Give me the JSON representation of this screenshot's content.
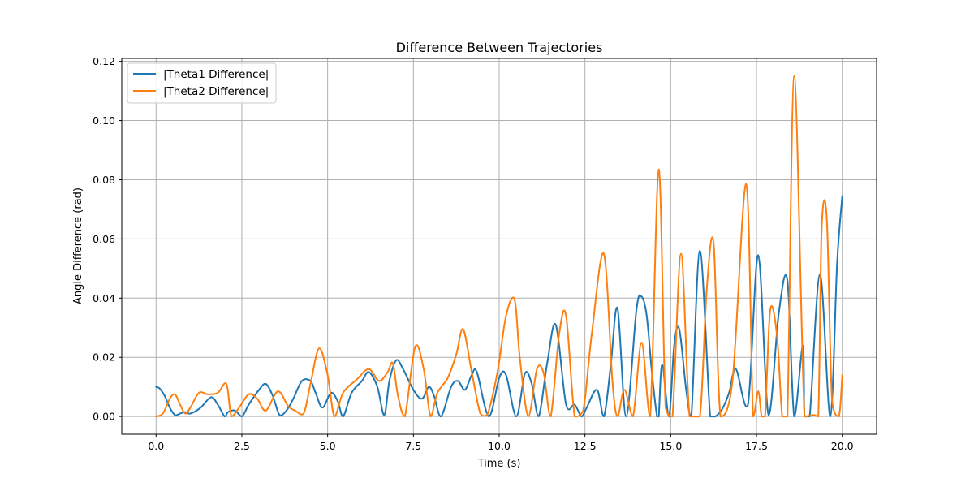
{
  "chart_data": {
    "type": "line",
    "title": "Difference Between Trajectories",
    "xlabel": "Time (s)",
    "ylabel": "Angle Difference (rad)",
    "xlim": [
      -1.0,
      21.0
    ],
    "ylim": [
      -0.006,
      0.121
    ],
    "xticks": [
      0.0,
      2.5,
      5.0,
      7.5,
      10.0,
      12.5,
      15.0,
      17.5,
      20.0
    ],
    "xtick_labels": [
      "0.0",
      "2.5",
      "5.0",
      "7.5",
      "10.0",
      "12.5",
      "15.0",
      "17.5",
      "20.0"
    ],
    "yticks": [
      0.0,
      0.02,
      0.04,
      0.06,
      0.08,
      0.1,
      0.12
    ],
    "ytick_labels": [
      "0.00",
      "0.02",
      "0.04",
      "0.06",
      "0.08",
      "0.10",
      "0.12"
    ],
    "grid": true,
    "legend_position": "top-left",
    "series": [
      {
        "name": "|Theta1 Difference|",
        "color": "#1f77b4",
        "x": [
          0.0,
          0.1,
          0.25,
          0.4,
          0.55,
          0.7,
          0.85,
          1.0,
          1.3,
          1.6,
          1.8,
          2.0,
          2.1,
          2.3,
          2.5,
          2.7,
          3.0,
          3.2,
          3.4,
          3.6,
          3.8,
          4.0,
          4.25,
          4.5,
          4.65,
          4.85,
          5.1,
          5.3,
          5.45,
          5.7,
          6.0,
          6.2,
          6.45,
          6.65,
          6.8,
          7.0,
          7.2,
          7.5,
          7.75,
          7.95,
          8.1,
          8.3,
          8.6,
          8.8,
          9.0,
          9.2,
          9.35,
          9.7,
          10.0,
          10.2,
          10.5,
          10.75,
          10.95,
          11.15,
          11.4,
          11.65,
          11.95,
          12.2,
          12.4,
          12.55,
          12.85,
          13.05,
          13.25,
          13.45,
          13.7,
          14.0,
          14.15,
          14.3,
          14.45,
          14.6,
          14.65,
          14.75,
          14.95,
          15.1,
          15.25,
          15.45,
          15.6,
          15.85,
          16.15,
          16.3,
          16.5,
          16.7,
          16.9,
          17.25,
          17.55,
          17.85,
          18.15,
          18.4,
          18.6,
          18.85,
          18.9,
          19.05,
          19.35,
          19.65,
          19.85,
          20.0
        ],
        "y": [
          0.01,
          0.0095,
          0.007,
          0.003,
          0.0005,
          0.001,
          0.0015,
          0.001,
          0.003,
          0.0065,
          0.004,
          0.0,
          0.0015,
          0.002,
          0.0,
          0.004,
          0.009,
          0.011,
          0.007,
          0.0005,
          0.002,
          0.006,
          0.012,
          0.012,
          0.008,
          0.003,
          0.008,
          0.005,
          0.0,
          0.008,
          0.012,
          0.015,
          0.01,
          0.0005,
          0.012,
          0.019,
          0.016,
          0.009,
          0.006,
          0.01,
          0.007,
          0.0,
          0.01,
          0.012,
          0.009,
          0.014,
          0.015,
          0.0,
          0.013,
          0.014,
          0.0,
          0.0145,
          0.011,
          0.0,
          0.018,
          0.031,
          0.004,
          0.004,
          0.0,
          0.003,
          0.009,
          0.0,
          0.017,
          0.0365,
          0.0,
          0.036,
          0.0405,
          0.034,
          0.015,
          0.0,
          0.0,
          0.0175,
          0.0,
          0.024,
          0.0295,
          0.009,
          0.0,
          0.056,
          0.0,
          0.0,
          0.0025,
          0.008,
          0.016,
          0.004,
          0.0545,
          0.0005,
          0.035,
          0.046,
          0.0,
          0.024,
          0.0,
          0.0,
          0.048,
          0.0,
          0.052,
          0.0745
        ]
      },
      {
        "name": "|Theta2 Difference|",
        "color": "#ff7f0e",
        "x": [
          0.0,
          0.2,
          0.4,
          0.55,
          0.7,
          0.85,
          1.0,
          1.25,
          1.5,
          1.8,
          2.05,
          2.2,
          2.45,
          2.7,
          2.95,
          3.2,
          3.55,
          3.85,
          4.05,
          4.3,
          4.5,
          4.75,
          5.0,
          5.2,
          5.45,
          5.85,
          6.2,
          6.5,
          6.75,
          6.9,
          7.05,
          7.25,
          7.55,
          7.8,
          8.0,
          8.2,
          8.5,
          8.75,
          8.95,
          9.2,
          9.45,
          9.65,
          9.95,
          10.2,
          10.45,
          10.6,
          10.85,
          11.1,
          11.3,
          11.5,
          11.75,
          11.95,
          12.2,
          12.45,
          12.7,
          13.05,
          13.3,
          13.45,
          13.65,
          13.9,
          14.15,
          14.4,
          14.65,
          14.85,
          15.05,
          15.3,
          15.55,
          15.85,
          16.05,
          16.25,
          16.45,
          16.8,
          17.2,
          17.4,
          17.55,
          17.65,
          17.75,
          17.9,
          18.1,
          18.25,
          18.4,
          18.6,
          18.9,
          19.15,
          19.3,
          19.4,
          19.55,
          19.7,
          19.9,
          20.0
        ],
        "y": [
          0.0,
          0.001,
          0.006,
          0.0075,
          0.004,
          0.001,
          0.003,
          0.008,
          0.0075,
          0.008,
          0.011,
          0.0,
          0.0035,
          0.0075,
          0.006,
          0.002,
          0.0085,
          0.0035,
          0.002,
          0.001,
          0.011,
          0.023,
          0.014,
          0.0,
          0.008,
          0.0125,
          0.016,
          0.012,
          0.015,
          0.018,
          0.007,
          0.0,
          0.0235,
          0.016,
          0.0,
          0.008,
          0.013,
          0.021,
          0.0295,
          0.015,
          0.001,
          0.0005,
          0.015,
          0.034,
          0.0395,
          0.02,
          0.0,
          0.016,
          0.0145,
          0.0,
          0.028,
          0.034,
          0.0,
          0.002,
          0.028,
          0.055,
          0.012,
          0.0,
          0.009,
          0.0,
          0.025,
          0.0,
          0.0835,
          0.003,
          0.0,
          0.055,
          0.0,
          0.0,
          0.043,
          0.0585,
          0.0,
          0.012,
          0.0785,
          0.0,
          0.0085,
          0.0,
          0.0,
          0.036,
          0.027,
          0.0,
          0.0,
          0.115,
          0.0,
          0.0005,
          0.0,
          0.064,
          0.0665,
          0.0055,
          0.0,
          0.014
        ]
      }
    ]
  }
}
